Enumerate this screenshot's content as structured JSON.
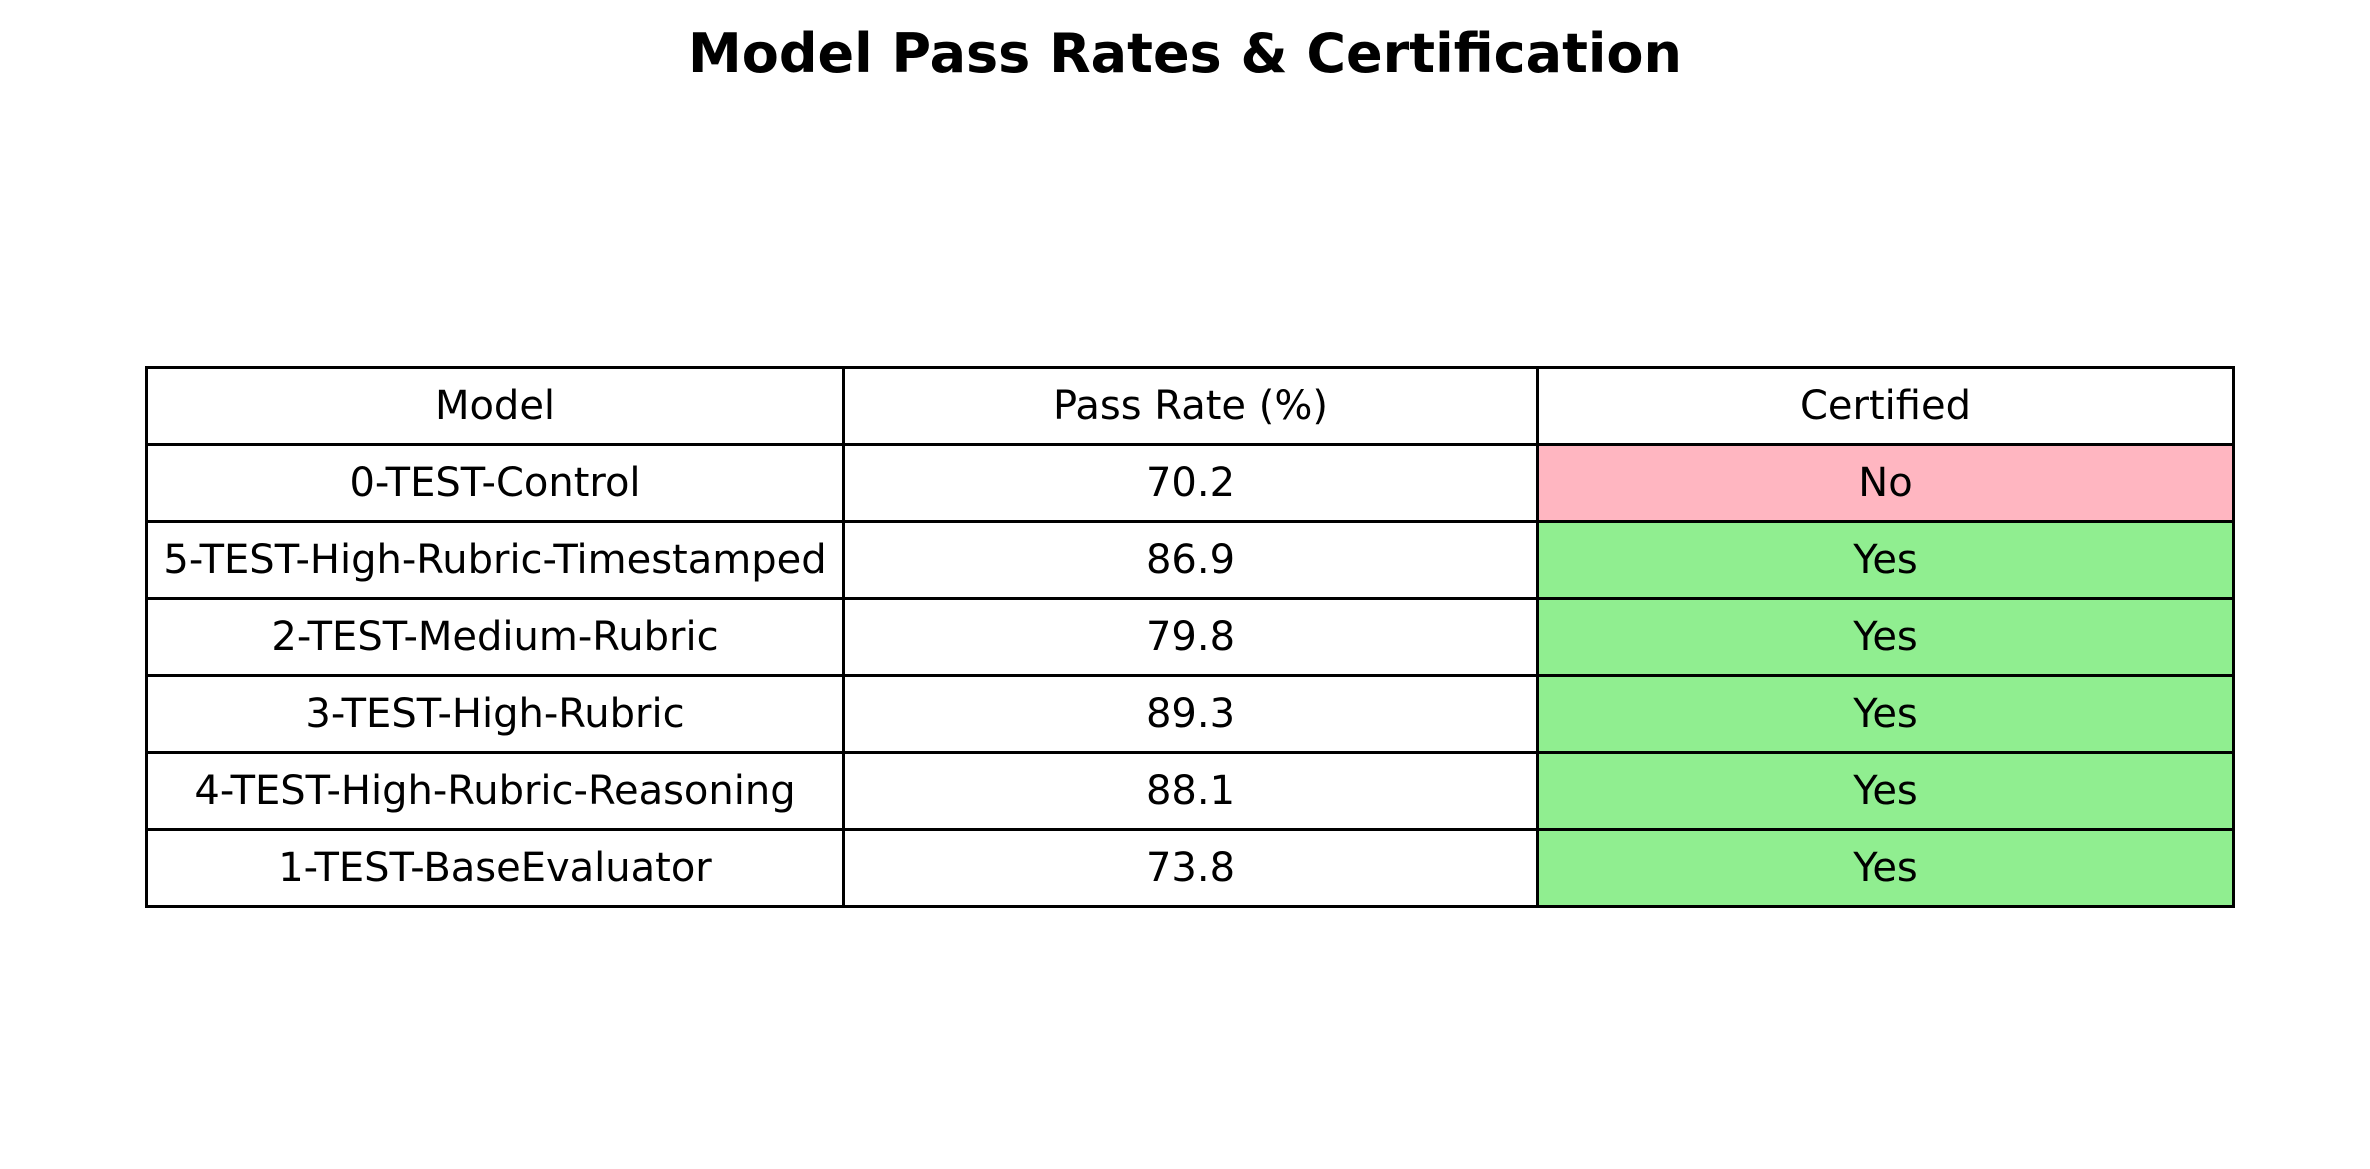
{
  "chart_data": {
    "type": "table",
    "title": "Model Pass Rates & Certification",
    "columns": [
      "Model",
      "Pass Rate (%)",
      "Certified"
    ],
    "rows": [
      [
        "0-TEST-Control",
        "70.2",
        "No"
      ],
      [
        "5-TEST-High-Rubric-Timestamped",
        "86.9",
        "Yes"
      ],
      [
        "2-TEST-Medium-Rubric",
        "79.8",
        "Yes"
      ],
      [
        "3-TEST-High-Rubric",
        "89.3",
        "Yes"
      ],
      [
        "4-TEST-High-Rubric-Reasoning",
        "88.1",
        "Yes"
      ],
      [
        "1-TEST-BaseEvaluator",
        "73.8",
        "Yes"
      ]
    ],
    "certified_colors": {
      "Yes": "#90ee90",
      "No": "#ffb6c1"
    },
    "header_color": "#ffffff",
    "cell_color": "#ffffff",
    "border_color": "#000000"
  }
}
